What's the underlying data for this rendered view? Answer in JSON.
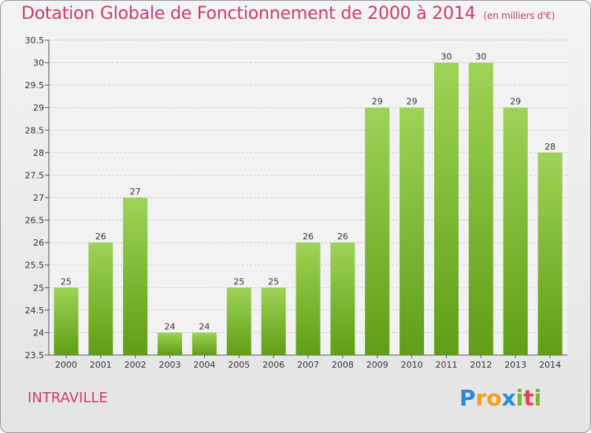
{
  "title": "Dotation Globale de Fonctionnement de 2000 à 2014",
  "subtitle": "(en milliers d'€)",
  "commune": "INTRAVILLE",
  "brand": {
    "letters": [
      "P",
      "r",
      "o",
      "x",
      "i",
      "t",
      "i"
    ],
    "colors": [
      "#2b8ad8",
      "#f0a020",
      "#f0a020",
      "#2b8ad8",
      "#7ab830",
      "#e84050",
      "#7ab830"
    ]
  },
  "colors": {
    "bar_light": "#9ed357",
    "bar_dark": "#5f9e16",
    "title": "#d23a72",
    "grid": "#cfcfcf"
  },
  "chart_data": {
    "type": "bar",
    "title": "Dotation Globale de Fonctionnement de 2000 à 2014",
    "subtitle": "(en milliers d'€)",
    "categories": [
      "2000",
      "2001",
      "2002",
      "2003",
      "2004",
      "2005",
      "2006",
      "2007",
      "2008",
      "2009",
      "2010",
      "2011",
      "2012",
      "2013",
      "2014"
    ],
    "values": [
      25,
      26,
      27,
      24,
      24,
      25,
      25,
      26,
      26,
      29,
      29,
      30,
      30,
      29,
      28
    ],
    "ylim": [
      23.5,
      30.5
    ],
    "yticks": [
      "23.5",
      "24",
      "24.5",
      "25",
      "25.5",
      "26",
      "26.5",
      "27",
      "27.5",
      "28",
      "28.5",
      "29",
      "29.5",
      "30",
      "30.5"
    ],
    "grid": true,
    "xlabel": "",
    "ylabel": ""
  }
}
